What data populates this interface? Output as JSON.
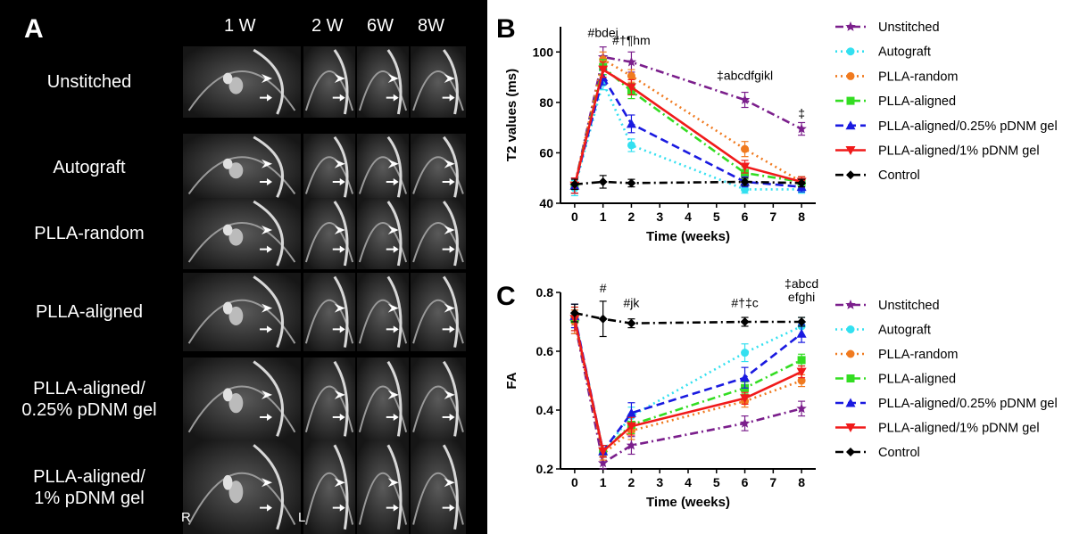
{
  "panelA": {
    "letter": "A",
    "columns": [
      "1 W",
      "2 W",
      "6W",
      "8W"
    ],
    "rows": [
      {
        "label": "Unstitched"
      },
      {
        "label": "Autograft"
      },
      {
        "label": "PLLA-random"
      },
      {
        "label": "PLLA-aligned"
      },
      {
        "label": "PLLA-aligned/\n0.25% pDNM gel"
      },
      {
        "label": "PLLA-aligned/\n1% pDNM gel"
      }
    ],
    "orientation_left": "R",
    "orientation_right": "L"
  },
  "chart_data": [
    {
      "panel": "B",
      "type": "line",
      "xlabel": "Time (weeks)",
      "ylabel": "T2 values (ms)",
      "xlim": [
        -0.5,
        8.5
      ],
      "ylim": [
        40,
        110
      ],
      "xticks": [
        0,
        1,
        2,
        3,
        4,
        5,
        6,
        7,
        8
      ],
      "yticks": [
        40,
        60,
        80,
        100
      ],
      "x": [
        0,
        1,
        2,
        6,
        8
      ],
      "legend_position": "right",
      "series": [
        {
          "name": "Unstitched",
          "color": "#7b1f8c",
          "dash": "dashdot",
          "marker": "star",
          "values": [
            47,
            98,
            96,
            81,
            69.5
          ],
          "err": [
            3,
            4,
            4,
            3,
            2.5
          ]
        },
        {
          "name": "Autograft",
          "color": "#33e0f0",
          "dash": "dot",
          "marker": "circle",
          "values": [
            46,
            88,
            63,
            45.5,
            45.5
          ],
          "err": [
            3,
            3,
            2.5,
            1.5,
            1.5
          ]
        },
        {
          "name": "PLLA-random",
          "color": "#f07a1f",
          "dash": "dot",
          "marker": "circle",
          "values": [
            47,
            97,
            90.5,
            61.5,
            48.5
          ],
          "err": [
            3,
            3,
            2.5,
            3,
            2
          ]
        },
        {
          "name": "PLLA-aligned",
          "color": "#33dd22",
          "dash": "dashdot",
          "marker": "square",
          "values": [
            47,
            94,
            84.5,
            52,
            48.5
          ],
          "err": [
            3,
            3,
            3,
            2.5,
            2
          ]
        },
        {
          "name": "PLLA-aligned/0.25% pDNM gel",
          "color": "#1a1ae0",
          "dash": "dash",
          "marker": "triangle",
          "values": [
            47,
            90,
            71.5,
            48.5,
            46.5
          ],
          "err": [
            3,
            3,
            3.5,
            2,
            2
          ]
        },
        {
          "name": "PLLA-aligned/1% pDNM gel",
          "color": "#f01a1a",
          "dash": "solid",
          "marker": "triangle-down",
          "values": [
            47,
            93,
            86,
            54.5,
            48.5
          ],
          "err": [
            3,
            3,
            3,
            2.5,
            2
          ]
        },
        {
          "name": "Control",
          "color": "#000000",
          "dash": "dashdot",
          "marker": "diamond",
          "values": [
            47.5,
            48.5,
            48,
            48.5,
            48
          ],
          "err": [
            2,
            2.5,
            1.5,
            1.5,
            1.5
          ]
        }
      ],
      "annotations": [
        {
          "text": "#bdej",
          "x": 1,
          "y": 106
        },
        {
          "text": "#†¶hm",
          "x": 2,
          "y": 103
        },
        {
          "text": "‡abcdfgikl",
          "x": 6,
          "y": 89
        },
        {
          "text": "‡",
          "x": 8,
          "y": 74
        }
      ]
    },
    {
      "panel": "C",
      "type": "line",
      "xlabel": "Time (weeks)",
      "ylabel": "FA",
      "xlim": [
        -0.5,
        8.5
      ],
      "ylim": [
        0.2,
        0.8
      ],
      "xticks": [
        0,
        1,
        2,
        3,
        4,
        5,
        6,
        7,
        8
      ],
      "yticks": [
        0.2,
        0.4,
        0.6,
        0.8
      ],
      "ytick_labels": [
        "0.2",
        "0.4",
        "0.6",
        "0.8"
      ],
      "x": [
        0,
        1,
        2,
        6,
        8
      ],
      "legend_position": "right",
      "series": [
        {
          "name": "Unstitched",
          "color": "#7b1f8c",
          "dash": "dashdot",
          "marker": "star",
          "values": [
            0.7,
            0.22,
            0.28,
            0.355,
            0.405
          ],
          "err": [
            0.04,
            0.02,
            0.03,
            0.025,
            0.025
          ]
        },
        {
          "name": "Autograft",
          "color": "#33e0f0",
          "dash": "dot",
          "marker": "circle",
          "values": [
            0.72,
            0.26,
            0.38,
            0.595,
            0.685
          ],
          "err": [
            0.04,
            0.02,
            0.03,
            0.03,
            0.03
          ]
        },
        {
          "name": "PLLA-random",
          "color": "#f07a1f",
          "dash": "dot",
          "marker": "circle",
          "values": [
            0.7,
            0.25,
            0.33,
            0.43,
            0.5
          ],
          "err": [
            0.04,
            0.02,
            0.03,
            0.02,
            0.02
          ]
        },
        {
          "name": "PLLA-aligned",
          "color": "#33dd22",
          "dash": "dashdot",
          "marker": "square",
          "values": [
            0.71,
            0.26,
            0.35,
            0.475,
            0.57
          ],
          "err": [
            0.04,
            0.02,
            0.03,
            0.02,
            0.02
          ]
        },
        {
          "name": "PLLA-aligned/0.25% pDNM gel",
          "color": "#1a1ae0",
          "dash": "dash",
          "marker": "triangle",
          "values": [
            0.72,
            0.26,
            0.39,
            0.51,
            0.66
          ],
          "err": [
            0.04,
            0.02,
            0.035,
            0.035,
            0.03
          ]
        },
        {
          "name": "PLLA-aligned/1% pDNM gel",
          "color": "#f01a1a",
          "dash": "solid",
          "marker": "triangle-down",
          "values": [
            0.71,
            0.26,
            0.345,
            0.44,
            0.53
          ],
          "err": [
            0.04,
            0.02,
            0.03,
            0.02,
            0.02
          ]
        },
        {
          "name": "Control",
          "color": "#000000",
          "dash": "dashdot",
          "marker": "diamond",
          "values": [
            0.73,
            0.71,
            0.695,
            0.7,
            0.7
          ],
          "err": [
            0.03,
            0.06,
            0.015,
            0.015,
            0.015
          ]
        }
      ],
      "annotations": [
        {
          "text": "#",
          "x": 1,
          "y": 0.8
        },
        {
          "text": "#jk",
          "x": 2,
          "y": 0.75
        },
        {
          "text": "#†‡c",
          "x": 6,
          "y": 0.75
        },
        {
          "text": "‡abcd",
          "x": 8,
          "y": 0.815
        },
        {
          "text": "efghi",
          "x": 8,
          "y": 0.77
        }
      ]
    }
  ]
}
